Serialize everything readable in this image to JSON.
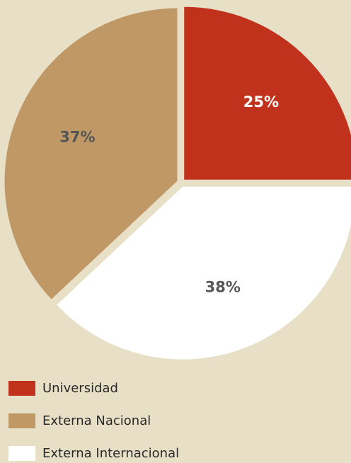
{
  "chart_data": {
    "type": "pie",
    "categories": [
      "Universidad",
      "Externa Nacional",
      "Externa Internacional"
    ],
    "values": [
      25,
      37,
      38
    ],
    "value_labels": [
      "25%",
      "37%",
      "38%"
    ],
    "colors": [
      "#c1321c",
      "#bf9866",
      "#ffffff"
    ],
    "label_colors": [
      "#ffffff",
      "#555555",
      "#555555"
    ]
  }
}
